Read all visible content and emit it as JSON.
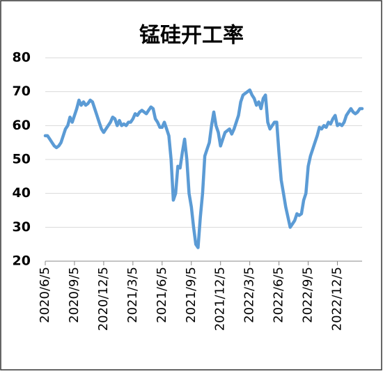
{
  "chart_data": {
    "type": "line",
    "title": "锰硅开工率",
    "categories": [
      "2020/6/5",
      null,
      null,
      null,
      null,
      null,
      null,
      null,
      null,
      null,
      null,
      null,
      null,
      "2020/9/5",
      null,
      null,
      null,
      null,
      null,
      null,
      null,
      null,
      null,
      null,
      null,
      null,
      "2020/12/5",
      null,
      null,
      null,
      null,
      null,
      null,
      null,
      null,
      null,
      null,
      null,
      null,
      "2021/3/5",
      null,
      null,
      null,
      null,
      null,
      null,
      null,
      null,
      null,
      null,
      null,
      null,
      "2021/6/5",
      null,
      null,
      null,
      null,
      null,
      null,
      null,
      null,
      null,
      null,
      null,
      null,
      "2021/9/5",
      null,
      null,
      null,
      null,
      null,
      null,
      null,
      null,
      null,
      null,
      null,
      null,
      "2021/12/5",
      null,
      null,
      null,
      null,
      null,
      null,
      null,
      null,
      null,
      null,
      null,
      null,
      "2022/3/5",
      null,
      null,
      null,
      null,
      null,
      null,
      null,
      null,
      null,
      null,
      null,
      null,
      "2022/6/5",
      null,
      null,
      null,
      null,
      null,
      null,
      null,
      null,
      null,
      null,
      null,
      null,
      "2022/9/5",
      null,
      null,
      null,
      null,
      null,
      null,
      null,
      null,
      null,
      null,
      null,
      null,
      "2022/12/5",
      null,
      null,
      null,
      null,
      null,
      null,
      null,
      null,
      null,
      null,
      null
    ],
    "values": [
      57,
      57,
      56,
      55,
      54,
      53.5,
      54,
      55,
      57,
      59,
      60,
      62.5,
      61,
      63,
      65,
      67.5,
      66,
      67,
      66,
      66.5,
      67.5,
      67,
      65,
      63,
      61,
      59,
      58,
      59,
      60,
      61,
      62.5,
      62,
      60,
      61.5,
      60,
      60.5,
      60,
      61,
      61,
      62,
      63.5,
      63,
      64,
      64.5,
      64,
      63.5,
      64.5,
      65.5,
      65,
      62,
      61,
      59.5,
      59.5,
      61,
      59,
      57,
      50,
      38,
      40,
      48,
      47.5,
      52,
      56,
      50,
      40,
      36,
      30,
      25,
      24,
      33,
      40,
      51,
      53,
      55,
      60,
      64,
      60,
      58,
      54,
      56,
      58,
      58.5,
      59,
      57.5,
      59,
      61,
      63,
      67,
      69,
      69.5,
      70,
      70.5,
      69,
      68,
      66,
      67,
      65,
      68,
      69,
      61,
      59,
      60,
      61,
      61,
      52,
      44,
      40,
      36,
      33,
      30,
      31,
      32,
      34,
      33.5,
      34,
      38,
      40,
      48,
      51,
      53,
      55,
      57,
      59.5,
      59,
      60,
      59.5,
      61,
      60.5,
      62,
      63,
      60,
      60.5,
      60,
      61,
      63,
      64,
      65,
      64,
      63.5,
      64,
      65,
      65
    ],
    "color": "#5b9bd5",
    "ylim": [
      20,
      80
    ],
    "yticks": [
      20,
      30,
      40,
      50,
      60,
      70,
      80
    ],
    "grid": true
  }
}
